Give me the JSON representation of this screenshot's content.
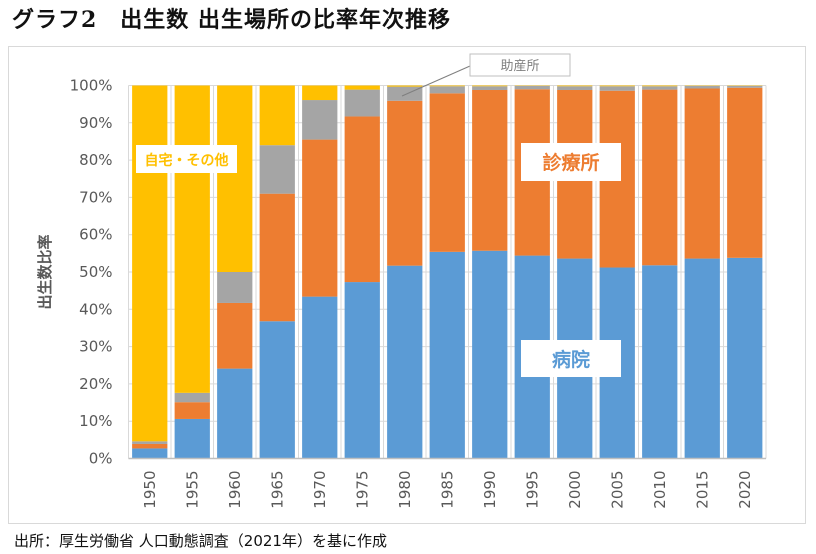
{
  "title": "グラフ2　出生数 出生場所の比率年次推移",
  "source": "出所：厚生労働省 人口動態調査（2021年）を基に作成",
  "colors": {
    "hospital": "#5b9bd5",
    "clinic": "#ed7d31",
    "midwife": "#a5a5a5",
    "home_other": "#ffc000",
    "grid": "#d9d9d9",
    "axis_text": "#595959"
  },
  "chart_data": {
    "type": "bar",
    "stacked": true,
    "title": "グラフ2　出生数 出生場所の比率年次推移",
    "xlabel": "",
    "ylabel": "出生数比率",
    "ylim": [
      0,
      100
    ],
    "yticks": [
      "0%",
      "10%",
      "20%",
      "30%",
      "40%",
      "50%",
      "60%",
      "70%",
      "80%",
      "90%",
      "100%"
    ],
    "grid": true,
    "legend": "none (inline series labels)",
    "categories": [
      "1950",
      "1955",
      "1960",
      "1965",
      "1970",
      "1975",
      "1980",
      "1985",
      "1990",
      "1995",
      "2000",
      "2005",
      "2010",
      "2015",
      "2020"
    ],
    "series": [
      {
        "key": "hospital",
        "name": "病院",
        "values": [
          2.7,
          10.6,
          24.1,
          36.8,
          43.4,
          47.3,
          51.7,
          55.4,
          55.7,
          54.4,
          53.6,
          51.2,
          51.8,
          53.6,
          53.8
        ]
      },
      {
        "key": "clinic",
        "name": "診療所",
        "values": [
          1.2,
          4.5,
          17.6,
          34.2,
          42.1,
          44.4,
          44.2,
          42.5,
          43.1,
          44.6,
          45.2,
          47.4,
          47.1,
          45.6,
          45.6
        ]
      },
      {
        "key": "midwife",
        "name": "助産所",
        "values": [
          0.7,
          2.5,
          8.3,
          13.0,
          10.6,
          7.2,
          3.8,
          1.9,
          1.0,
          0.9,
          1.0,
          1.2,
          0.9,
          0.7,
          0.5
        ]
      },
      {
        "key": "home_other",
        "name": "自宅・その他",
        "values": [
          95.4,
          82.4,
          50.0,
          16.0,
          3.9,
          1.1,
          0.3,
          0.2,
          0.2,
          0.1,
          0.2,
          0.2,
          0.2,
          0.1,
          0.1
        ]
      }
    ],
    "annotations": [
      {
        "series": "home_other",
        "text": "自宅・その他"
      },
      {
        "series": "clinic",
        "text": "診療所"
      },
      {
        "series": "hospital",
        "text": "病院"
      },
      {
        "series": "midwife",
        "text": "助産所",
        "callout": true
      }
    ]
  }
}
